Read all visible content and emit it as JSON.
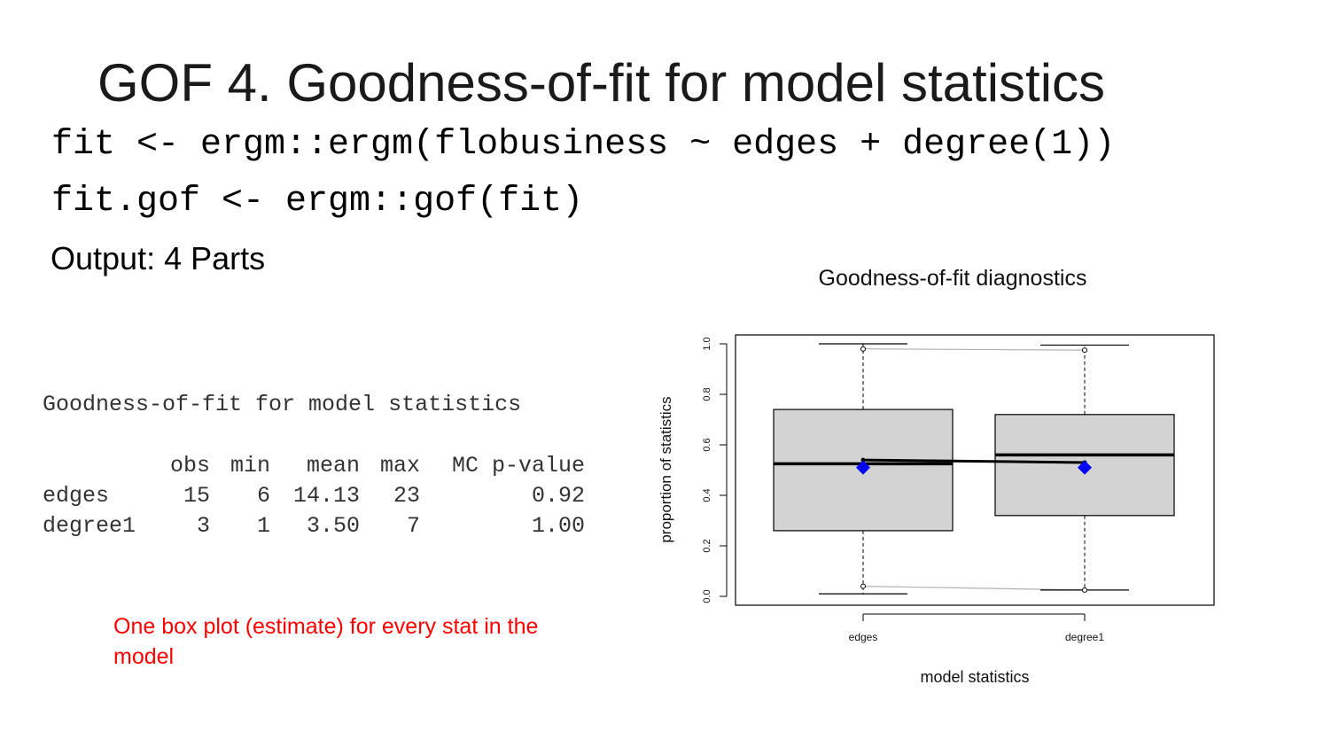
{
  "slide": {
    "title": "GOF 4. Goodness-of-fit for model statistics",
    "code_line_1": "fit <- ergm::ergm(flobusiness ~ edges + degree(1))",
    "code_line_2": "fit.gof <- ergm::gof(fit)",
    "subheading": "Output: 4 Parts",
    "note": "One box plot (estimate) for every stat in the model",
    "note_color": "#ff0000"
  },
  "r_output": {
    "heading": "Goodness-of-fit for model statistics",
    "columns": [
      "",
      "obs",
      "min",
      "mean",
      "max",
      "MC p-value"
    ],
    "rows": [
      [
        "edges",
        "15",
        "6",
        "14.13",
        "23",
        "0.92"
      ],
      [
        "degree1",
        "3",
        "1",
        "3.50",
        "7",
        "1.00"
      ]
    ]
  },
  "chart_data": {
    "type": "box",
    "title": "Goodness-of-fit diagnostics",
    "xlabel": "model statistics",
    "ylabel": "proportion of statistics",
    "ylim": [
      0,
      1
    ],
    "yticks": [
      "0.0",
      "0.2",
      "0.4",
      "0.6",
      "0.8",
      "1.0"
    ],
    "categories": [
      "edges",
      "degree1"
    ],
    "boxes": [
      {
        "name": "edges",
        "whisker_low": 0.01,
        "q1": 0.26,
        "median": 0.525,
        "q3": 0.74,
        "whisker_high": 1.0,
        "observed": 0.51
      },
      {
        "name": "degree1",
        "whisker_low": 0.025,
        "q1": 0.32,
        "median": 0.56,
        "q3": 0.72,
        "whisker_high": 0.995,
        "observed": 0.51
      }
    ],
    "mean_line": [
      0.54,
      0.53
    ],
    "upper_bound_line": [
      0.98,
      0.975
    ],
    "lower_bound_line": [
      0.04,
      0.025
    ],
    "box_color": "#d3d3d3",
    "observed_color": "#0000ff"
  }
}
